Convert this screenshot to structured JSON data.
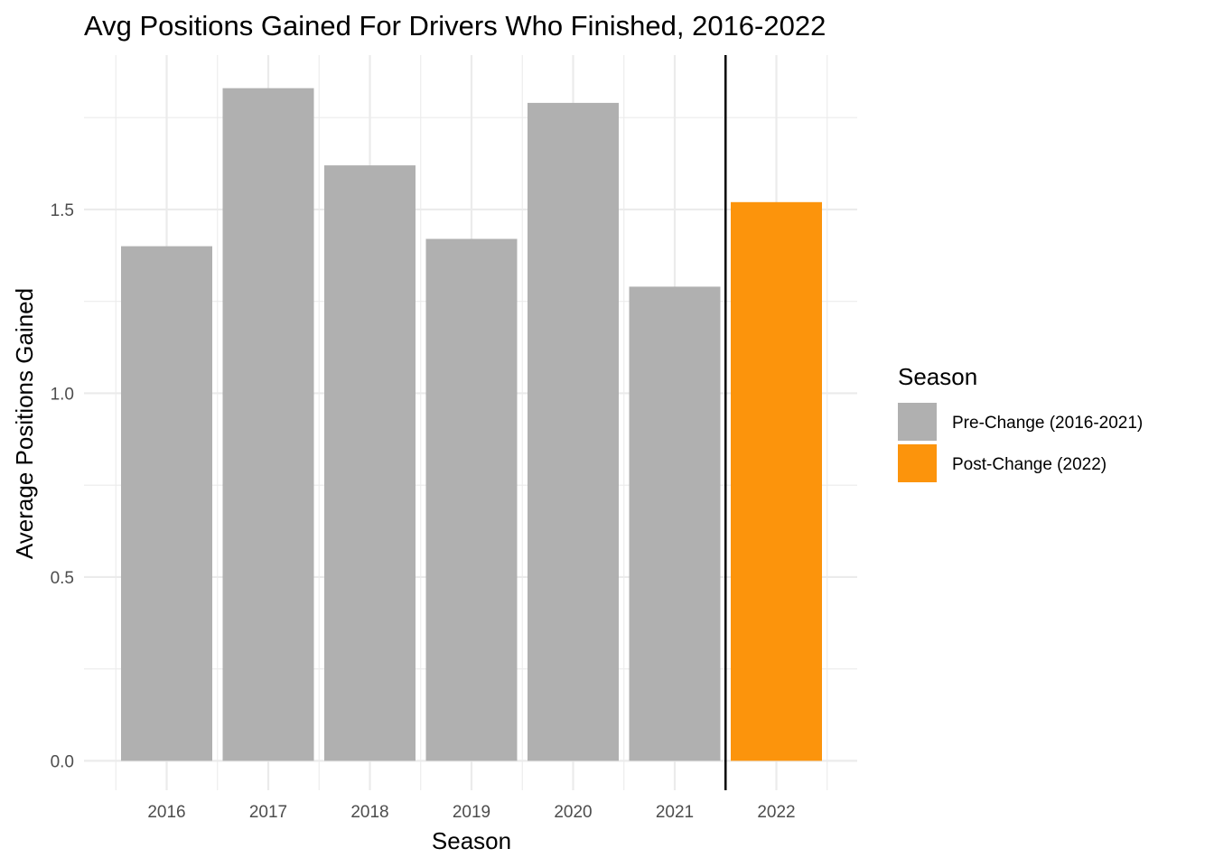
{
  "chart_data": {
    "type": "bar",
    "title": "Avg Positions Gained For Drivers Who Finished, 2016-2022",
    "xlabel": "Season",
    "ylabel": "Average Positions Gained",
    "categories": [
      "2016",
      "2017",
      "2018",
      "2019",
      "2020",
      "2021",
      "2022"
    ],
    "values": [
      1.4,
      1.83,
      1.62,
      1.42,
      1.79,
      1.29,
      1.52
    ],
    "groups": [
      "Pre-Change (2016-2021)",
      "Pre-Change (2016-2021)",
      "Pre-Change (2016-2021)",
      "Pre-Change (2016-2021)",
      "Pre-Change (2016-2021)",
      "Pre-Change (2016-2021)",
      "Post-Change (2022)"
    ],
    "ylim": [
      -0.08,
      1.92
    ],
    "y_ticks": [
      0.0,
      0.5,
      1.0,
      1.5
    ],
    "y_tick_labels": [
      "0.0",
      "0.5",
      "1.0",
      "1.5"
    ],
    "grid": true,
    "reference_line": {
      "between": [
        "2021",
        "2022"
      ],
      "color": "#000000"
    },
    "legend": {
      "title": "Season",
      "position": "right",
      "items": [
        {
          "label": "Pre-Change (2016-2021)",
          "color": "#b0b0b0"
        },
        {
          "label": "Post-Change (2022)",
          "color": "#fc940c"
        }
      ]
    },
    "colors": {
      "Pre-Change (2016-2021)": "#b0b0b0",
      "Post-Change (2022)": "#fc940c",
      "grid": "#ebebeb",
      "tick_text": "#4d4d4d"
    }
  }
}
